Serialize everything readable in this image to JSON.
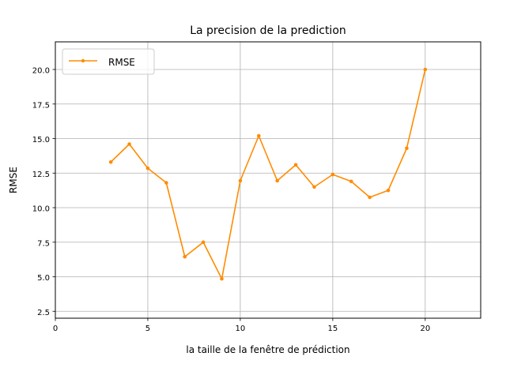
{
  "chart_data": {
    "type": "line",
    "title": "La precision de la prediction",
    "xlabel": "la taille de la fenêtre de prédiction",
    "ylabel": "RMSE",
    "xlim": [
      0,
      23
    ],
    "ylim": [
      2.0,
      22.0
    ],
    "xticks": [
      0,
      5,
      10,
      15,
      20
    ],
    "xtick_labels": [
      "0",
      "5",
      "10",
      "15",
      "20"
    ],
    "yticks": [
      2.5,
      5.0,
      7.5,
      10.0,
      12.5,
      15.0,
      17.5,
      20.0
    ],
    "ytick_labels": [
      "2.5",
      "5.0",
      "7.5",
      "10.0",
      "12.5",
      "15.0",
      "17.5",
      "20.0"
    ],
    "grid": true,
    "legend_position": "upper left",
    "series": [
      {
        "name": "RMSE",
        "color": "#ff8c00",
        "x": [
          3,
          4,
          5,
          6,
          7,
          8,
          9,
          10,
          11,
          12,
          13,
          14,
          15,
          16,
          17,
          18,
          19,
          20
        ],
        "y": [
          13.3,
          14.6,
          12.85,
          11.8,
          6.45,
          7.5,
          4.85,
          11.95,
          15.2,
          11.95,
          13.1,
          11.5,
          12.4,
          11.9,
          10.75,
          11.25,
          14.3,
          20.0
        ]
      }
    ]
  }
}
